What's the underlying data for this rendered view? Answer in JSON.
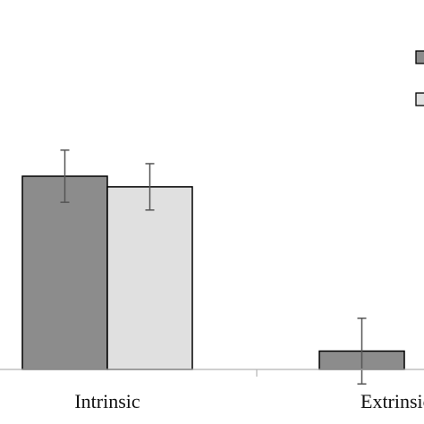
{
  "chart_data": {
    "type": "bar",
    "categories": [
      "Intrinsic",
      "Extrinsic"
    ],
    "series": [
      {
        "color": "#8c8c8c",
        "values": [
          100,
          9.5
        ],
        "err": [
          13.5,
          17
        ]
      },
      {
        "color": "#e0e0e0",
        "values": [
          94.5,
          null
        ],
        "err": [
          12,
          null
        ]
      }
    ],
    "ylim": [
      0,
      120
    ],
    "grid": false,
    "legend_placement": "top-right"
  }
}
